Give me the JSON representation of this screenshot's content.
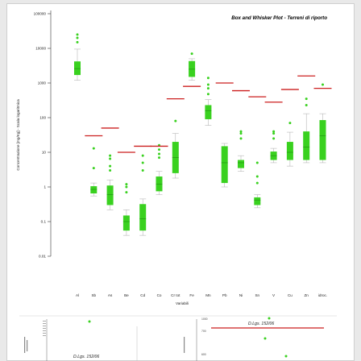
{
  "chart_data": [
    {
      "type": "box",
      "title": "Box and Whisker Plot - Terreni di riporto",
      "xlabel": "Variabili",
      "ylabel": "Concentrazione [mg/Kg] - Scala logaritmica",
      "y_scale": "log",
      "ylim": [
        0.01,
        100000
      ],
      "y_ticks": [
        "100000",
        "10000",
        "1000",
        "100",
        "10",
        "1",
        "0.1",
        "0.01"
      ],
      "y_tick_values": [
        100000,
        10000,
        1000,
        100,
        10,
        1,
        0.1,
        0.01
      ],
      "categories": [
        "Al",
        "Sb",
        "As",
        "Be",
        "Cd",
        "Co",
        "Cr tot",
        "Fe",
        "Mn",
        "Pb",
        "Ni",
        "Sn",
        "V",
        "Cu",
        "Zn",
        "Idroc."
      ],
      "category_label_text": [
        "Al",
        "Sb",
        "As",
        "Be",
        "Cd",
        "Co",
        "Cr tot",
        "Fe",
        "Mn",
        "Pb",
        "Ni",
        "Sn",
        "V",
        "Cu",
        "Zn",
        "idroc."
      ],
      "box_color": "#39d11f",
      "limit_color": "#cc1f1f",
      "grid": false,
      "legend": "none",
      "boxes": [
        {
          "q1": 1700,
          "median": 2600,
          "q3": 4200,
          "whisker_low": 1200,
          "whisker_high": 9500,
          "outliers": [
            15000,
            20000,
            25000
          ]
        },
        {
          "q1": 0.65,
          "median": 0.85,
          "q3": 1.05,
          "whisker_low": 0.55,
          "whisker_high": 1.3,
          "outliers": [
            3.5,
            13
          ]
        },
        {
          "q1": 0.3,
          "median": 0.6,
          "q3": 1.1,
          "whisker_low": 0.22,
          "whisker_high": 1.6,
          "outliers": [
            3,
            4,
            6.5,
            8
          ]
        },
        {
          "q1": 0.055,
          "median": 0.1,
          "q3": 0.15,
          "whisker_low": 0.04,
          "whisker_high": 0.22,
          "outliers": [
            0.7,
            1.0,
            1.2
          ]
        },
        {
          "q1": 0.055,
          "median": 0.12,
          "q3": 0.32,
          "whisker_low": 0.04,
          "whisker_high": 0.45,
          "outliers": [
            3,
            5,
            8
          ]
        },
        {
          "q1": 0.75,
          "median": 1.2,
          "q3": 2.0,
          "whisker_low": 0.6,
          "whisker_high": 2.8,
          "outliers": [
            7,
            9,
            12,
            16
          ]
        },
        {
          "q1": 2.5,
          "median": 7,
          "q3": 20,
          "whisker_low": 1.8,
          "whisker_high": 35,
          "outliers": [
            80
          ]
        },
        {
          "q1": 1500,
          "median": 2500,
          "q3": 4300,
          "whisker_low": 1200,
          "whisker_high": 5000,
          "outliers": [
            7000
          ]
        },
        {
          "q1": 90,
          "median": 160,
          "q3": 230,
          "whisker_low": 60,
          "whisker_high": 330,
          "outliers": [
            480,
            700,
            900,
            1400
          ]
        },
        {
          "q1": 1.3,
          "median": 5,
          "q3": 15,
          "whisker_low": 1.0,
          "whisker_high": 18,
          "outliers": []
        },
        {
          "q1": 3.5,
          "median": 5,
          "q3": 6,
          "whisker_low": 2.8,
          "whisker_high": 8,
          "outliers": [
            25,
            35,
            40
          ]
        },
        {
          "q1": 0.3,
          "median": 0.42,
          "q3": 0.5,
          "whisker_low": 0.25,
          "whisker_high": 0.6,
          "outliers": [
            1.3,
            2,
            5
          ]
        },
        {
          "q1": 6,
          "median": 8,
          "q3": 10.5,
          "whisker_low": 5,
          "whisker_high": 13,
          "outliers": [
            25,
            35,
            40
          ]
        },
        {
          "q1": 6,
          "median": 10,
          "q3": 20,
          "whisker_low": 4,
          "whisker_high": 38,
          "outliers": [
            70
          ]
        },
        {
          "q1": 6,
          "median": 14,
          "q3": 40,
          "whisker_low": 5,
          "whisker_high": 130,
          "outliers": [
            230,
            350
          ]
        },
        {
          "q1": 6,
          "median": 30,
          "q3": 85,
          "whisker_low": 5,
          "whisker_high": 130,
          "outliers": [
            900
          ]
        }
      ],
      "limits": [
        {
          "category": "Sb",
          "value": 30
        },
        {
          "category": "As",
          "value": 50
        },
        {
          "category": "Be",
          "value": 10
        },
        {
          "category": "Cd",
          "value": 15
        },
        {
          "category": "Co",
          "value": 15
        },
        {
          "category": "Cr tot",
          "value": 350
        },
        {
          "category": "Fe",
          "value": 800
        },
        {
          "category": "Pb",
          "value": 1000
        },
        {
          "category": "Ni",
          "value": 600
        },
        {
          "category": "Sn",
          "value": 400
        },
        {
          "category": "V",
          "value": 280
        },
        {
          "category": "Cu",
          "value": 650
        },
        {
          "category": "Zn",
          "value": 1600
        },
        {
          "category": "Idroc.",
          "value": 700
        }
      ]
    },
    {
      "type": "box",
      "title": "",
      "annotation": "D.Lgs. 152/06",
      "y_ticks": [
        "1000",
        "700",
        "600"
      ],
      "points": [
        1000,
        700,
        600
      ]
    },
    {
      "type": "box",
      "title": "",
      "annotation": "D.Lgs. 152/06"
    }
  ]
}
